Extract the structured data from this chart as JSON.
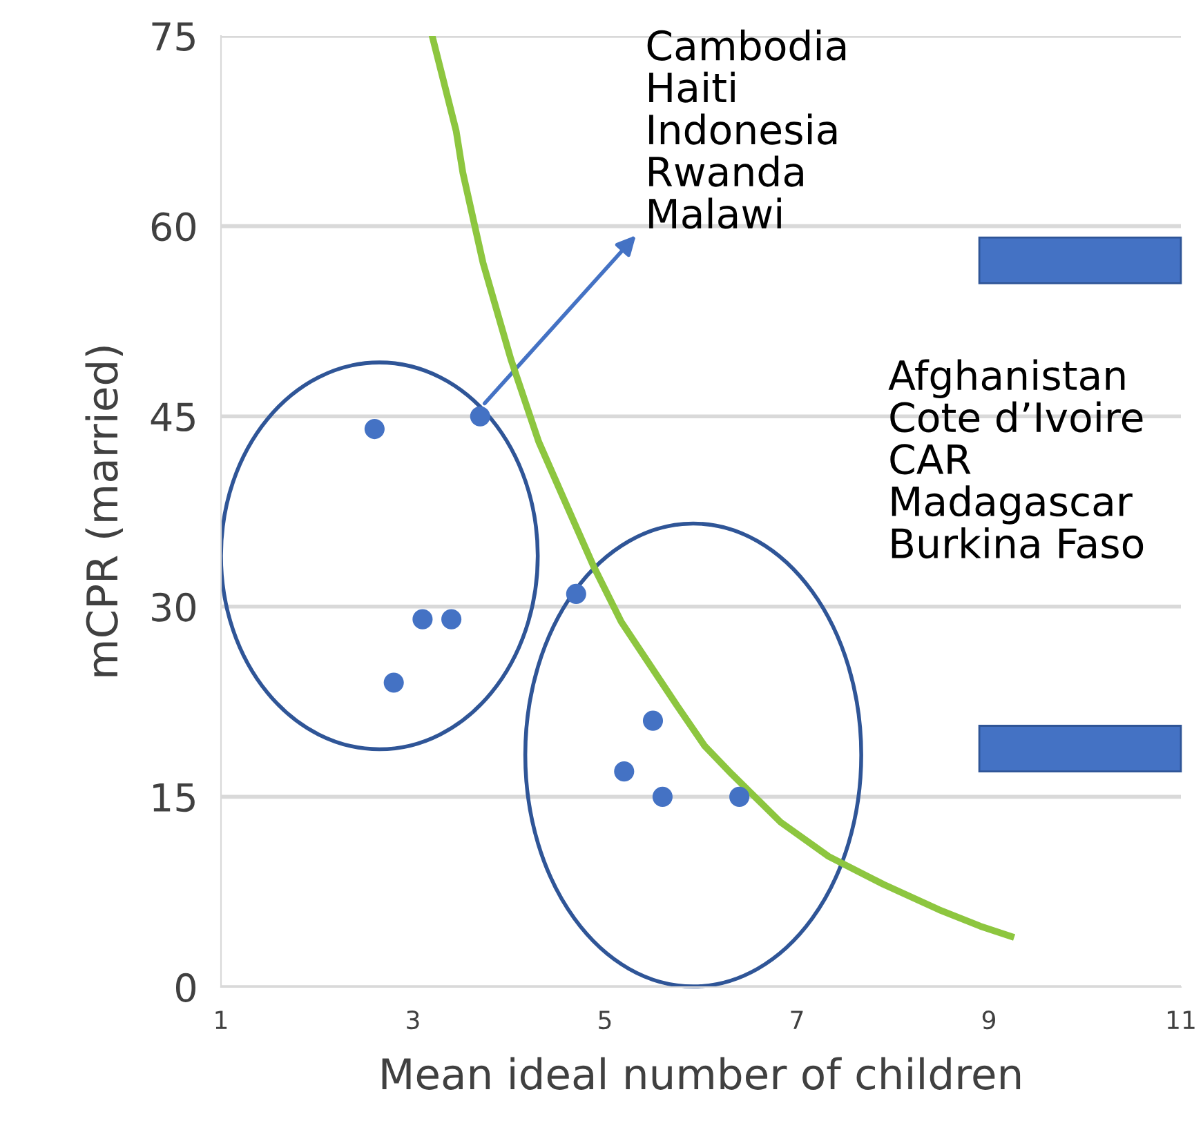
{
  "chart_data": {
    "type": "scatter",
    "xlabel": "Mean ideal number of children",
    "ylabel": "mCPR (married)",
    "xlim": [
      1,
      11
    ],
    "xticks": [
      1,
      3,
      5,
      7,
      9,
      11
    ],
    "ylim": [
      0,
      75
    ],
    "yticks": [
      0,
      15,
      30,
      45,
      60,
      75
    ],
    "grid": "y",
    "marker": "circle",
    "series": [
      {
        "color": "#4472c4",
        "x": [
          2.6,
          3.7,
          3.1,
          3.4,
          2.8,
          4.7,
          5.5,
          5.2,
          5.6,
          6.4
        ],
        "values": [
          44,
          45,
          29,
          29,
          24,
          31,
          21,
          17,
          15,
          15
        ]
      },
      {
        "type": "line",
        "color": "#8dc63f",
        "marker": "none",
        "x": [
          3.2,
          3.45,
          3.52,
          3.73,
          4.02,
          4.31,
          4.6,
          4.88,
          5.17,
          5.46,
          5.75,
          6.04,
          6.32,
          6.83,
          7.33,
          7.9,
          8.48,
          8.91,
          9.23
        ],
        "values": [
          75,
          67.5,
          64.2,
          57.1,
          49.5,
          43,
          38,
          33.2,
          28.8,
          25.5,
          22.2,
          19,
          16.8,
          13,
          10.3,
          8.1,
          6.1,
          4.8,
          4.0
        ]
      }
    ],
    "annotations": [
      "Cambodia\nHaiti\nIndonesia\nRwanda\nMalawi",
      "Afghanistan\nCote d’Ivoire\nCAR\nMadagascar\nBurkina Faso"
    ]
  }
}
